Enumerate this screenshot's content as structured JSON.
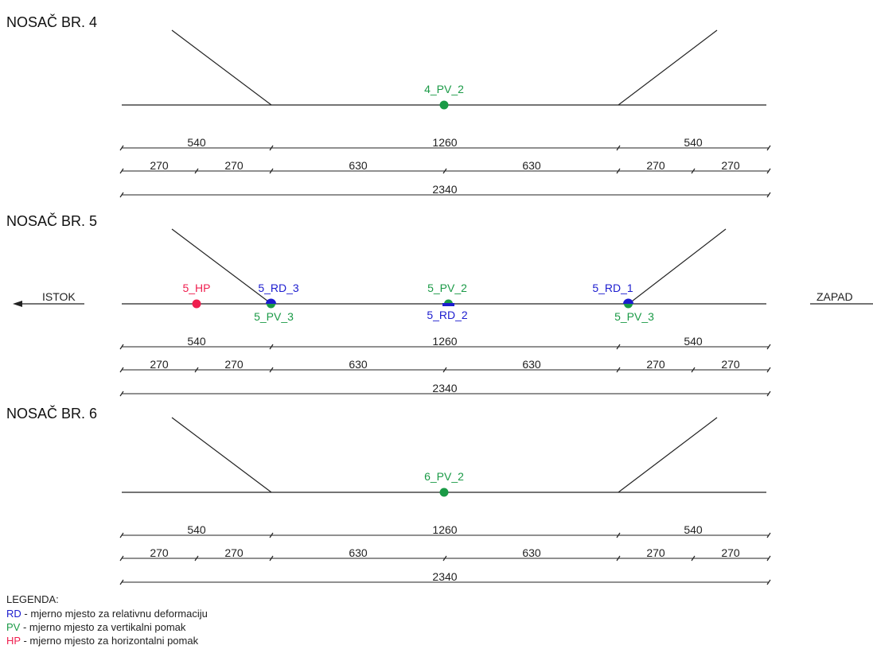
{
  "colors": {
    "rd": "#1c1ccf",
    "pv": "#1a9a46",
    "hp": "#ef1f4f",
    "line": "#222222"
  },
  "girders": [
    {
      "title": "NOSAČ BR. 4"
    },
    {
      "title": "NOSAČ BR. 5"
    },
    {
      "title": "NOSAČ BR. 6"
    }
  ],
  "dims": {
    "row1": [
      "540",
      "1260",
      "540"
    ],
    "row2": [
      "270",
      "270",
      "630",
      "630",
      "270",
      "270"
    ],
    "row3": [
      "2340"
    ]
  },
  "points": {
    "g4": {
      "pv2": "4_PV_2"
    },
    "g5": {
      "hp": "5_HP",
      "rd3": "5_RD_3",
      "pv3_left": "5_PV_3",
      "pv2": "5_PV_2",
      "rd2": "5_RD_2",
      "rd1": "5_RD_1",
      "pv3_right": "5_PV_3"
    },
    "g6": {
      "pv2": "6_PV_2"
    }
  },
  "directions": {
    "east": "ISTOK",
    "west": "ZAPAD"
  },
  "legend": {
    "title": "LEGENDA:",
    "items": [
      {
        "code": "RD",
        "text": " - mjerno mjesto za relativnu deformaciju",
        "color": "#1c1ccf"
      },
      {
        "code": "PV",
        "text": " - mjerno mjesto za vertikalni pomak",
        "color": "#1a9a46"
      },
      {
        "code": "HP",
        "text": " - mjerno mjesto za horizontalni pomak",
        "color": "#ef1f4f"
      }
    ]
  }
}
